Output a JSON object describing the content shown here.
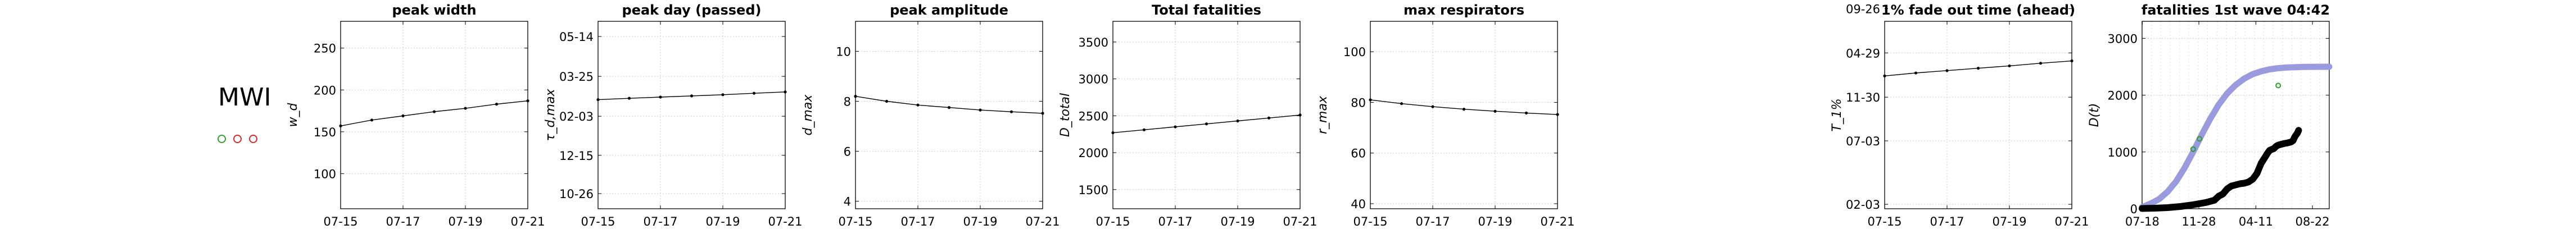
{
  "country": "MWI",
  "status_markers": [
    {
      "color": "#2ca02c"
    },
    {
      "color": "#d62728"
    },
    {
      "color": "#d62728"
    }
  ],
  "chart_data": [
    {
      "type": "line",
      "title": "peak width",
      "ylabel": "w_d",
      "x": [
        "07-15",
        "07-16",
        "07-17",
        "07-18",
        "07-19",
        "07-20",
        "07-21"
      ],
      "xticks": [
        "07-15",
        "07-17",
        "07-19",
        "07-21"
      ],
      "values": [
        157,
        164,
        169,
        174,
        178,
        183,
        187
      ],
      "ylim": [
        58,
        282
      ],
      "yticks": [
        {
          "v": 100,
          "label": "100"
        },
        {
          "v": 150,
          "label": "150"
        },
        {
          "v": 200,
          "label": "200"
        },
        {
          "v": 250,
          "label": "250"
        }
      ],
      "grid": true
    },
    {
      "type": "line",
      "title": "peak day (passed)",
      "ylabel": "τ_d,max",
      "x": [
        "07-15",
        "07-16",
        "07-17",
        "07-18",
        "07-19",
        "07-20",
        "07-21"
      ],
      "xticks": [
        "07-15",
        "07-17",
        "07-19",
        "07-21"
      ],
      "values": [
        1.8,
        3.5,
        5.0,
        6.5,
        8.0,
        9.8,
        11.5
      ],
      "ylim": [
        -135,
        100
      ],
      "yticks": [
        {
          "v": -116,
          "label": "10-26"
        },
        {
          "v": -68,
          "label": "12-15"
        },
        {
          "v": -19,
          "label": "02-03"
        },
        {
          "v": 31,
          "label": "03-25"
        },
        {
          "v": 81,
          "label": "05-14"
        }
      ],
      "grid": true
    },
    {
      "type": "line",
      "title": "peak amplitude",
      "ylabel": "d_max",
      "x": [
        "07-15",
        "07-16",
        "07-17",
        "07-18",
        "07-19",
        "07-20",
        "07-21"
      ],
      "xticks": [
        "07-15",
        "07-17",
        "07-19",
        "07-21"
      ],
      "values": [
        8.2,
        8.0,
        7.85,
        7.75,
        7.65,
        7.58,
        7.52
      ],
      "ylim": [
        3.7,
        11.2
      ],
      "yticks": [
        {
          "v": 4,
          "label": "4"
        },
        {
          "v": 6,
          "label": "6"
        },
        {
          "v": 8,
          "label": "8"
        },
        {
          "v": 10,
          "label": "10"
        }
      ],
      "grid": true
    },
    {
      "type": "line",
      "title": "Total fatalities",
      "ylabel": "D_total",
      "x": [
        "07-15",
        "07-16",
        "07-17",
        "07-18",
        "07-19",
        "07-20",
        "07-21"
      ],
      "xticks": [
        "07-15",
        "07-17",
        "07-19",
        "07-21"
      ],
      "values": [
        2270,
        2310,
        2350,
        2390,
        2430,
        2470,
        2510
      ],
      "ylim": [
        1240,
        3780
      ],
      "yticks": [
        {
          "v": 1500,
          "label": "1500"
        },
        {
          "v": 2000,
          "label": "2000"
        },
        {
          "v": 2500,
          "label": "2500"
        },
        {
          "v": 3000,
          "label": "3000"
        },
        {
          "v": 3500,
          "label": "3500"
        }
      ],
      "grid": true
    },
    {
      "type": "line",
      "title": "max respirators",
      "ylabel": "r_max",
      "x": [
        "07-15",
        "07-16",
        "07-17",
        "07-18",
        "07-19",
        "07-20",
        "07-21"
      ],
      "xticks": [
        "07-15",
        "07-17",
        "07-19",
        "07-21"
      ],
      "values": [
        81,
        79.5,
        78.3,
        77.3,
        76.5,
        75.8,
        75.2
      ],
      "ylim": [
        38,
        112
      ],
      "yticks": [
        {
          "v": 40,
          "label": "40"
        },
        {
          "v": 60,
          "label": "60"
        },
        {
          "v": 80,
          "label": "80"
        },
        {
          "v": 100,
          "label": "100"
        }
      ],
      "grid": true
    },
    {
      "type": "line",
      "title": "1% fade out time (ahead)",
      "ylabel": "T_1%",
      "x": [
        "07-15",
        "07-16",
        "07-17",
        "07-18",
        "07-19",
        "07-20",
        "07-21"
      ],
      "xticks": [
        "07-15",
        "07-17",
        "07-19",
        "07-21"
      ],
      "values": [
        -50,
        -40,
        -32,
        -24,
        -16,
        -7,
        1
      ],
      "ylim": [
        -500,
        135
      ],
      "yticks": [
        {
          "v": -485,
          "label": "02-03"
        },
        {
          "v": -270,
          "label": "07-03"
        },
        {
          "v": -122,
          "label": "11-30"
        },
        {
          "v": 28,
          "label": "04-29"
        },
        {
          "v": 178,
          "label": "09-26"
        }
      ],
      "grid": true
    },
    {
      "type": "line",
      "title": "fatalities 1st wave 04:42",
      "ylabel": "D(t)",
      "xticks": [
        "07-18",
        "11-28",
        "04-11",
        "08-22"
      ],
      "xtick_values": [
        0.5,
        133.5,
        267.5,
        400.5
      ],
      "xlim": [
        0,
        440
      ],
      "ylim": [
        0,
        3300
      ],
      "yticks": [
        {
          "v": 0,
          "label": "0"
        },
        {
          "v": 1000,
          "label": "1000"
        },
        {
          "v": 2000,
          "label": "2000"
        },
        {
          "v": 3000,
          "label": "3000"
        }
      ],
      "grid": true,
      "series": [
        {
          "role": "fit",
          "color": "#9a9ade",
          "x": [
            0,
            20,
            40,
            60,
            80,
            100,
            120,
            140,
            160,
            180,
            200,
            220,
            240,
            260,
            280,
            300,
            320,
            340,
            360,
            380,
            400,
            420,
            440
          ],
          "values": [
            30,
            90,
            170,
            300,
            480,
            720,
            1000,
            1300,
            1580,
            1830,
            2030,
            2180,
            2290,
            2370,
            2420,
            2455,
            2475,
            2487,
            2493,
            2497,
            2499,
            2500,
            2500
          ]
        },
        {
          "role": "observed",
          "color": "#000000",
          "x": [
            0,
            30,
            60,
            90,
            120,
            150,
            170,
            180,
            190,
            200,
            210,
            220,
            230,
            240,
            250,
            260,
            270,
            280,
            290,
            295,
            300,
            310,
            315,
            320,
            325,
            330,
            335,
            340,
            345,
            350,
            355,
            358,
            360,
            365,
            368
          ],
          "values": [
            5,
            10,
            20,
            40,
            70,
            110,
            150,
            220,
            260,
            350,
            400,
            420,
            440,
            450,
            470,
            520,
            620,
            800,
            920,
            980,
            1030,
            1060,
            1100,
            1120,
            1130,
            1140,
            1150,
            1155,
            1165,
            1175,
            1200,
            1250,
            1280,
            1330,
            1380
          ]
        },
        {
          "role": "markers",
          "color": "#2ca02c",
          "x": [
            120,
            135,
            320
          ],
          "values": [
            1050,
            1230,
            2170
          ]
        }
      ]
    }
  ]
}
